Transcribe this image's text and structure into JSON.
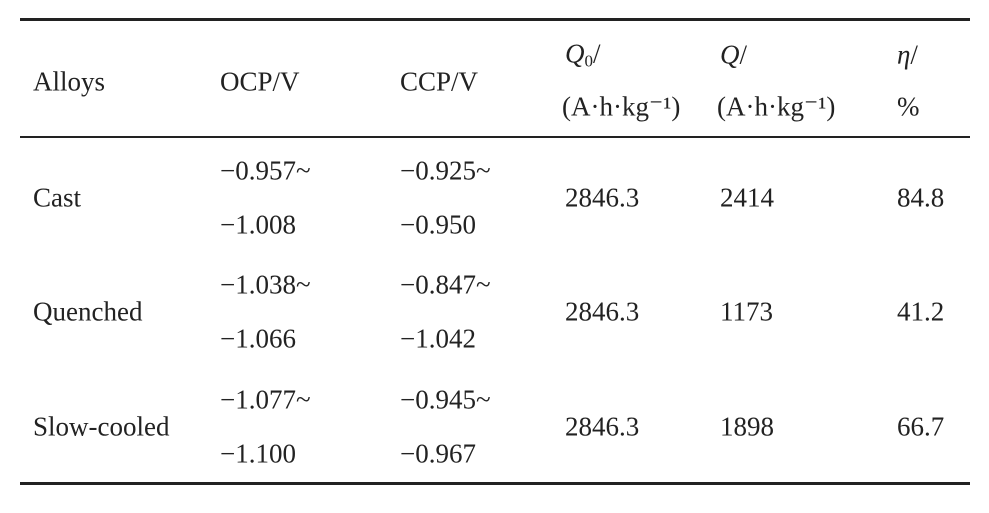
{
  "table": {
    "header": [
      {
        "line1": "Alloys"
      },
      {
        "line1": "OCP/V"
      },
      {
        "line1": "CCP/V"
      },
      {
        "symbol": "Q",
        "sub": "0",
        "slash": "/",
        "line2": "(A·h·kg⁻¹)"
      },
      {
        "symbol": "Q",
        "slash": "/",
        "line2": "(A·h·kg⁻¹)"
      },
      {
        "symbol": "η",
        "slash": "/",
        "line2": "%"
      }
    ],
    "rows": [
      {
        "alloy": "Cast",
        "ocp": [
          "−0.957~",
          "−1.008"
        ],
        "ccp": [
          "−0.925~",
          "−0.950"
        ],
        "q0": 2846.3,
        "q": 2414,
        "eta": 84.8
      },
      {
        "alloy": "Quenched",
        "ocp": [
          "−1.038~",
          "−1.066"
        ],
        "ccp": [
          "−0.847~",
          "−1.042"
        ],
        "q0": 2846.3,
        "q": 1173,
        "eta": 41.2
      },
      {
        "alloy": "Slow-cooled",
        "ocp": [
          "−1.077~",
          "−1.100"
        ],
        "ccp": [
          "−0.945~",
          "−0.967"
        ],
        "q0": 2846.3,
        "q": 1898,
        "eta": 66.7
      }
    ]
  }
}
